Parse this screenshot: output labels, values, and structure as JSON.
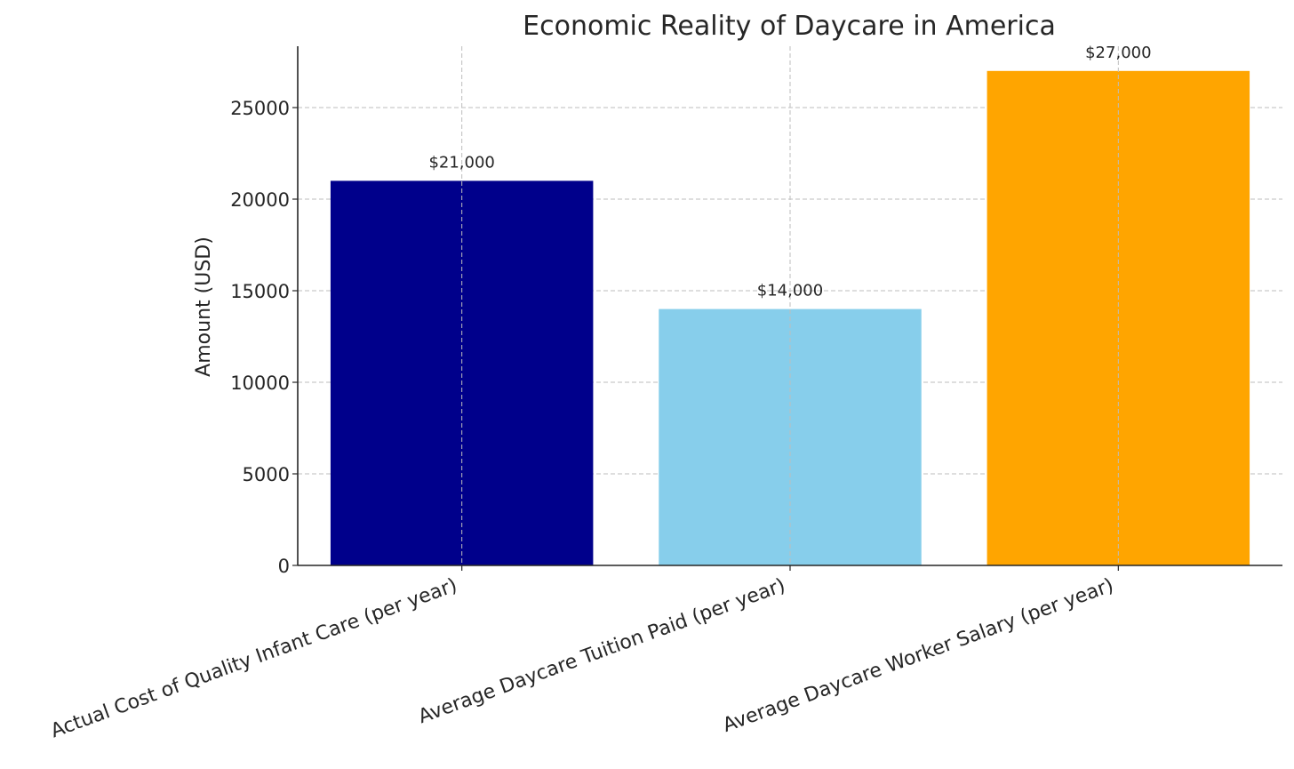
{
  "chart_data": {
    "type": "bar",
    "title": "Economic Reality of Daycare in America",
    "xlabel": "",
    "ylabel": "Amount (USD)",
    "categories": [
      "Actual Cost of Quality Infant Care (per year)",
      "Average Daycare Tuition Paid (per year)",
      "Average Daycare Worker Salary (per year)"
    ],
    "values": [
      21000,
      14000,
      27000
    ],
    "data_labels": [
      "$21,000",
      "$14,000",
      "$27,000"
    ],
    "colors": [
      "#00008b",
      "#87ceeb",
      "#ffa500"
    ],
    "ylim": [
      0,
      28350
    ],
    "yticks": [
      0,
      5000,
      10000,
      15000,
      20000,
      25000
    ],
    "grid": true,
    "legend": "none"
  }
}
